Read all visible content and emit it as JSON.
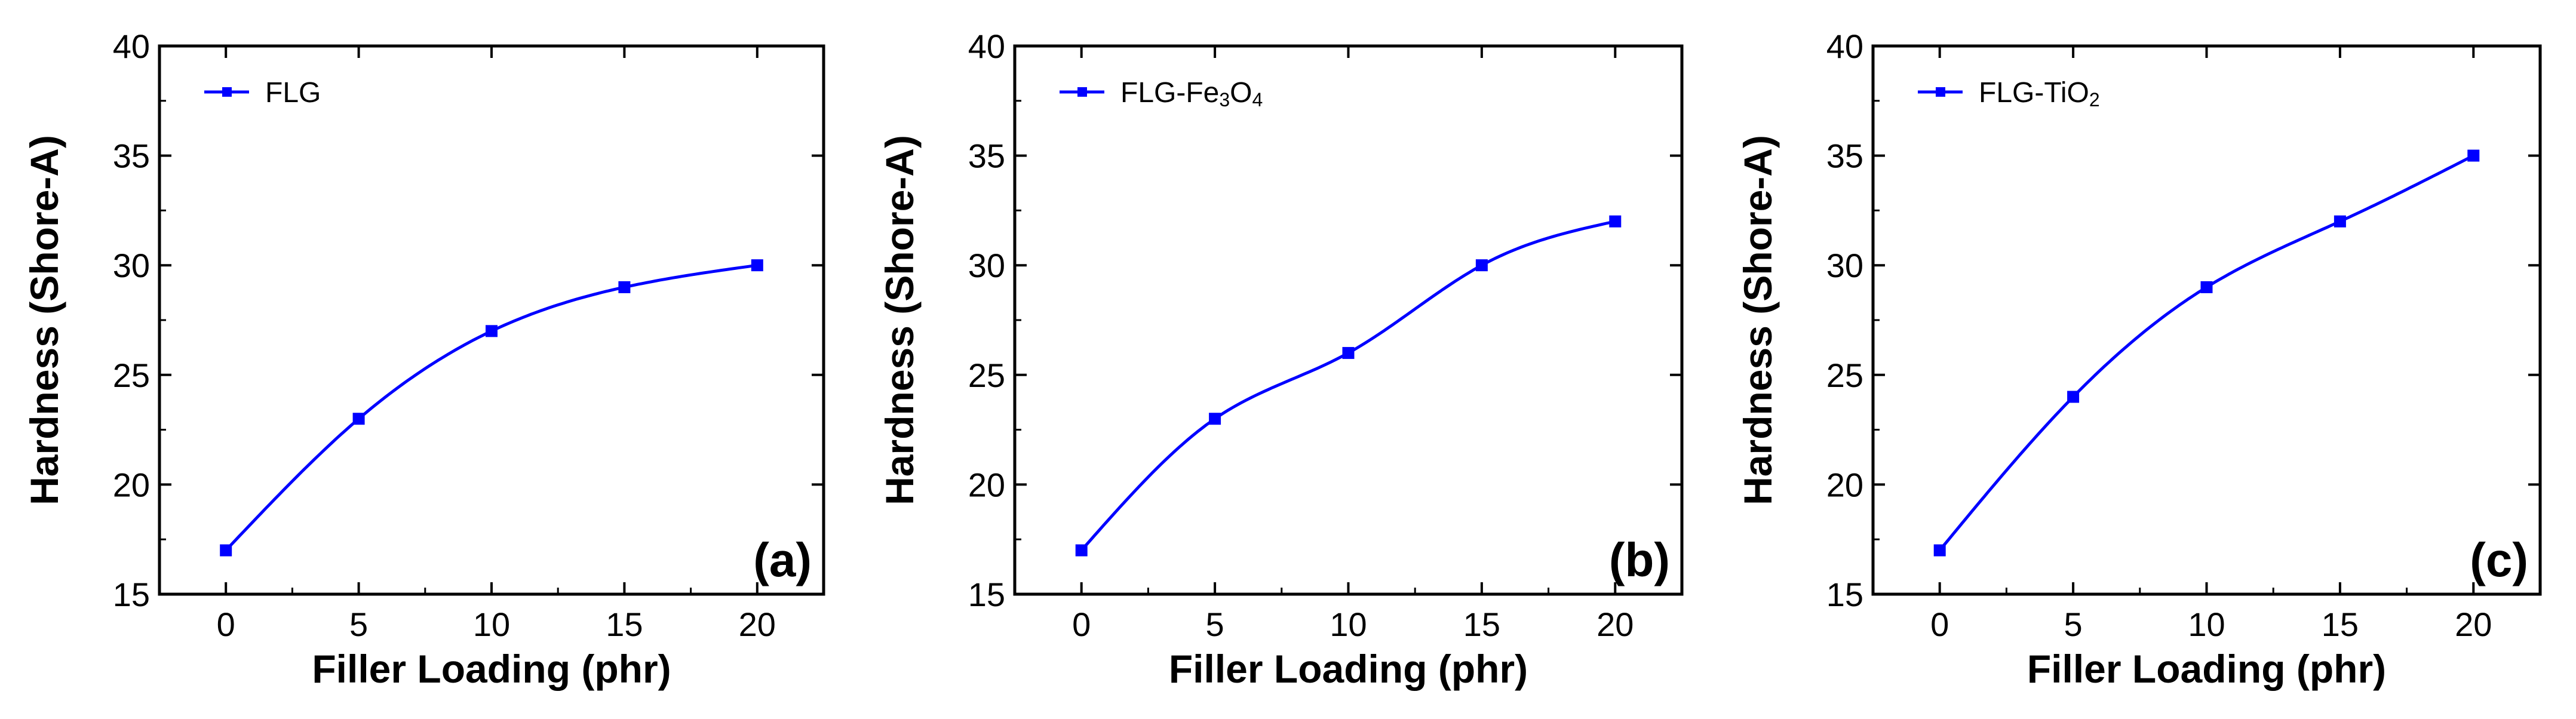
{
  "chart_data": [
    {
      "type": "line",
      "panel_label": "(a)",
      "xlabel": "Filler Loading (phr)",
      "ylabel": "Hardness (Shore-A)",
      "xlim": [
        -2.5,
        22.5
      ],
      "ylim": [
        15,
        40
      ],
      "x_ticks": [
        0,
        5,
        10,
        15,
        20
      ],
      "y_ticks": [
        15,
        20,
        25,
        30,
        35,
        40
      ],
      "legend_position": "top-left",
      "grid": false,
      "smooth": true,
      "series": [
        {
          "name": "FLG",
          "name_parts": [
            {
              "text": "FLG",
              "sub": false
            }
          ],
          "color": "#0000ff",
          "marker": "square",
          "x": [
            0,
            5,
            10,
            15,
            20
          ],
          "y": [
            17,
            23,
            27,
            29,
            30
          ]
        }
      ]
    },
    {
      "type": "line",
      "panel_label": "(b)",
      "xlabel": "Filler Loading (phr)",
      "ylabel": "Hardness (Shore-A)",
      "xlim": [
        -2.5,
        22.5
      ],
      "ylim": [
        15,
        40
      ],
      "x_ticks": [
        0,
        5,
        10,
        15,
        20
      ],
      "y_ticks": [
        15,
        20,
        25,
        30,
        35,
        40
      ],
      "legend_position": "top-left",
      "grid": false,
      "smooth": true,
      "series": [
        {
          "name": "FLG-Fe3O4",
          "name_parts": [
            {
              "text": "FLG-Fe",
              "sub": false
            },
            {
              "text": "3",
              "sub": true
            },
            {
              "text": "O",
              "sub": false
            },
            {
              "text": "4",
              "sub": true
            }
          ],
          "color": "#0000ff",
          "marker": "square",
          "x": [
            0,
            5,
            10,
            15,
            20
          ],
          "y": [
            17,
            23,
            26,
            30,
            32
          ]
        }
      ]
    },
    {
      "type": "line",
      "panel_label": "(c)",
      "xlabel": "Filler Loading (phr)",
      "ylabel": "Hardness (Shore-A)",
      "xlim": [
        -2.5,
        22.5
      ],
      "ylim": [
        15,
        40
      ],
      "x_ticks": [
        0,
        5,
        10,
        15,
        20
      ],
      "y_ticks": [
        15,
        20,
        25,
        30,
        35,
        40
      ],
      "legend_position": "top-left",
      "grid": false,
      "smooth": true,
      "series": [
        {
          "name": "FLG-TiO2",
          "name_parts": [
            {
              "text": "FLG-TiO",
              "sub": false
            },
            {
              "text": "2",
              "sub": true
            }
          ],
          "color": "#0000ff",
          "marker": "square",
          "x": [
            0,
            5,
            10,
            15,
            20
          ],
          "y": [
            17,
            24,
            29,
            32,
            35
          ]
        }
      ]
    }
  ]
}
